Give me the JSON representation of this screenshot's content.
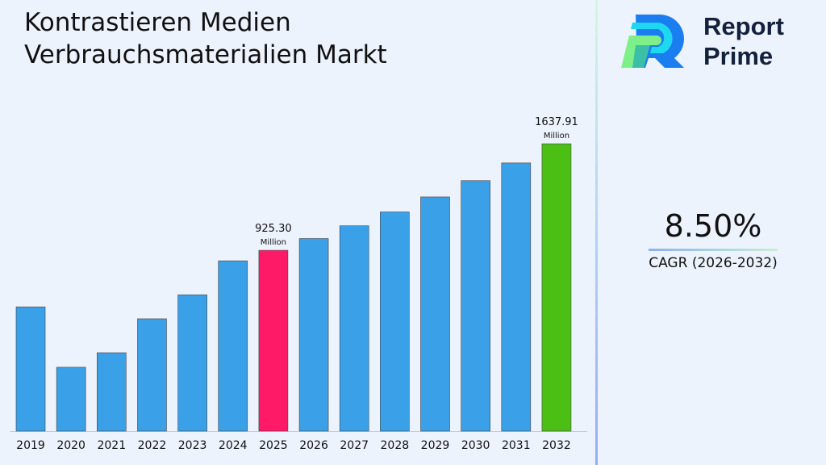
{
  "title_line1": "Kontrastieren Medien",
  "title_line2": "Verbrauchsmaterialien Markt",
  "brand": {
    "line1": "Report",
    "line2": "Prime"
  },
  "cagr": {
    "value": "8.50%",
    "label": "CAGR (2026-2032)"
  },
  "chart_data": {
    "type": "bar",
    "title": "Kontrastieren Medien Verbrauchsmaterialien Markt",
    "categories": [
      "2019",
      "2020",
      "2021",
      "2022",
      "2023",
      "2024",
      "2025",
      "2026",
      "2027",
      "2028",
      "2029",
      "2030",
      "2031",
      "2032"
    ],
    "values": [
      547,
      143,
      240,
      467,
      628,
      855,
      925.3,
      1003.9,
      1089.2,
      1181.8,
      1282.3,
      1391.3,
      1509.6,
      1637.91
    ],
    "colors": {
      "default": "#3aa0e8",
      "highlight_2025": "#fe1a66",
      "highlight_2032": "#4cbf14"
    },
    "data_labels": [
      {
        "category": "2025",
        "value": "925.30",
        "unit": "Million"
      },
      {
        "category": "2032",
        "value": "1637.91",
        "unit": "Million"
      }
    ],
    "grid": false
  }
}
